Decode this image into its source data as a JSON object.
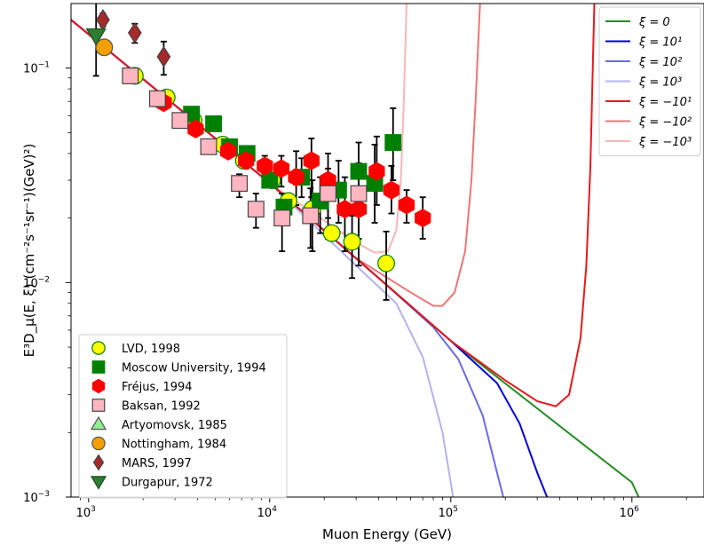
{
  "chart_data": {
    "type": "scatter",
    "xlabel": "Muon Energy (GeV)",
    "ylabel": "E³D_μ(E, ξ) (cm⁻²s⁻¹sr⁻¹)(GeV)²)",
    "xscale": "log",
    "yscale": "log",
    "xlim": [
      800,
      2500000
    ],
    "ylim": [
      0.001,
      0.2
    ],
    "xticks": [
      {
        "value": 1000,
        "base": "10",
        "exp": "3"
      },
      {
        "value": 10000,
        "base": "10",
        "exp": "4"
      },
      {
        "value": 100000,
        "base": "10",
        "exp": "5"
      },
      {
        "value": 1000000,
        "base": "10",
        "exp": "6"
      }
    ],
    "yticks": [
      {
        "value": 0.001,
        "base": "10",
        "exp": "−3"
      },
      {
        "value": 0.01,
        "base": "10",
        "exp": "−2"
      },
      {
        "value": 0.1,
        "base": "10",
        "exp": "−1"
      }
    ],
    "legend_curves": {
      "placement": "top-right",
      "items": [
        {
          "label": "ξ = 0",
          "color": "#228b22"
        },
        {
          "label": "ξ = 10¹",
          "color": "#0000dd"
        },
        {
          "label": "ξ = 10²",
          "color": "#6a6ae8"
        },
        {
          "label": "ξ = 10³",
          "color": "#b3b3f2"
        },
        {
          "label": "ξ = −10¹",
          "color": "#e6191d"
        },
        {
          "label": "ξ = −10²",
          "color": "#ee7575"
        },
        {
          "label": "ξ = −10³",
          "color": "#f7b7b7"
        }
      ]
    },
    "curves": [
      {
        "color": "#f7b7b7",
        "points": [
          [
            800,
            0.168
          ],
          [
            10000,
            0.0291
          ],
          [
            30000,
            0.0154
          ],
          [
            38000,
            0.0138
          ],
          [
            45000,
            0.014
          ],
          [
            50000,
            0.0175
          ],
          [
            53000,
            0.03
          ],
          [
            55000,
            0.07
          ],
          [
            57000,
            0.2
          ]
        ]
      },
      {
        "color": "#ee7575",
        "points": [
          [
            800,
            0.168
          ],
          [
            10000,
            0.0291
          ],
          [
            30000,
            0.013
          ],
          [
            60000,
            0.009
          ],
          [
            80000,
            0.0078
          ],
          [
            90000,
            0.0078
          ],
          [
            105000,
            0.009
          ],
          [
            120000,
            0.014
          ],
          [
            130000,
            0.03
          ],
          [
            137000,
            0.07
          ],
          [
            145000,
            0.2
          ]
        ]
      },
      {
        "color": "#b3b3f2",
        "points": [
          [
            800,
            0.168
          ],
          [
            10000,
            0.0291
          ],
          [
            30000,
            0.012
          ],
          [
            50000,
            0.008
          ],
          [
            70000,
            0.0045
          ],
          [
            90000,
            0.002
          ],
          [
            103000,
            0.001
          ]
        ]
      },
      {
        "color": "#6a6ae8",
        "points": [
          [
            800,
            0.168
          ],
          [
            10000,
            0.0291
          ],
          [
            40000,
            0.0105
          ],
          [
            80000,
            0.0062
          ],
          [
            110000,
            0.0044
          ],
          [
            150000,
            0.0024
          ],
          [
            180000,
            0.0013
          ],
          [
            195000,
            0.001
          ]
        ]
      },
      {
        "color": "#228b22",
        "points": [
          [
            800,
            0.168
          ],
          [
            10000,
            0.0291
          ],
          [
            100000,
            0.00535
          ],
          [
            1000000,
            0.00117
          ],
          [
            1090000,
            0.001
          ]
        ]
      },
      {
        "color": "#0000dd",
        "points": [
          [
            800,
            0.168
          ],
          [
            10000,
            0.0291
          ],
          [
            100000,
            0.00535
          ],
          [
            180000,
            0.0034
          ],
          [
            240000,
            0.0022
          ],
          [
            300000,
            0.0013
          ],
          [
            340000,
            0.001
          ]
        ]
      },
      {
        "color": "#e6191d",
        "points": [
          [
            800,
            0.168
          ],
          [
            10000,
            0.0291
          ],
          [
            100000,
            0.00535
          ],
          [
            200000,
            0.0035
          ],
          [
            300000,
            0.0028
          ],
          [
            380000,
            0.00265
          ],
          [
            450000,
            0.003
          ],
          [
            520000,
            0.0055
          ],
          [
            560000,
            0.012
          ],
          [
            590000,
            0.035
          ],
          [
            620000,
            0.2
          ]
        ]
      }
    ],
    "legend_data": {
      "placement": "lower-left",
      "items": [
        {
          "label": "LVD, 1998",
          "marker": "circle",
          "color": "#ffff00",
          "edge": "#008000"
        },
        {
          "label": "Moscow University, 1994",
          "marker": "square",
          "color": "#008000",
          "edge": "#008000"
        },
        {
          "label": "Fréjus, 1994",
          "marker": "hexagon",
          "color": "#ff0000",
          "edge": "#ff0000"
        },
        {
          "label": "Baksan, 1992",
          "marker": "square",
          "color": "#ffb6c1",
          "edge": "#444444"
        },
        {
          "label": "Artyomovsk, 1985",
          "marker": "triangle-up",
          "color": "#90ee90",
          "edge": "#555555"
        },
        {
          "label": "Nottingham, 1984",
          "marker": "circle",
          "color": "#f4a000",
          "edge": "#555555"
        },
        {
          "label": "MARS, 1997",
          "marker": "diamond",
          "color": "#a52a2a",
          "edge": "#444444"
        },
        {
          "label": "Durgapur, 1972",
          "marker": "triangle-down",
          "color": "#2e7d32",
          "edge": "#1b4d1f"
        }
      ]
    },
    "series": [
      {
        "name": "LVD, 1998",
        "marker": "circle",
        "color": "#ffff00",
        "edge": "#008000",
        "points": [
          [
            1800,
            0.092
          ],
          [
            2700,
            0.073
          ],
          [
            3800,
            0.057
          ],
          [
            5500,
            0.044
          ],
          [
            7200,
            0.037
          ],
          [
            10300,
            0.03
          ],
          [
            12700,
            0.024
          ],
          [
            17200,
            0.022
          ],
          [
            22000,
            0.017
          ],
          [
            28500,
            0.0155
          ],
          [
            44000,
            0.0123
          ]
        ],
        "errors": [
          [
            0,
            0
          ],
          [
            0,
            0
          ],
          [
            0,
            0
          ],
          [
            0,
            0
          ],
          [
            0,
            0
          ],
          [
            0,
            0
          ],
          [
            0,
            0
          ],
          [
            0.008,
            0.008
          ],
          [
            0,
            0
          ],
          [
            0.005,
            0.005
          ],
          [
            0.004,
            0.005
          ]
        ]
      },
      {
        "name": "Moscow University, 1994",
        "marker": "square",
        "color": "#008000",
        "edge": "#008000",
        "points": [
          [
            3700,
            0.061
          ],
          [
            4900,
            0.055
          ],
          [
            6000,
            0.043
          ],
          [
            7500,
            0.04
          ],
          [
            10000,
            0.03
          ],
          [
            12000,
            0.0225
          ],
          [
            15000,
            0.031
          ],
          [
            19000,
            0.024
          ],
          [
            24000,
            0.027
          ],
          [
            31000,
            0.033
          ],
          [
            38000,
            0.029
          ],
          [
            48000,
            0.045
          ]
        ],
        "errors": [
          [
            0,
            0
          ],
          [
            0,
            0
          ],
          [
            0,
            0
          ],
          [
            0.003,
            0.003
          ],
          [
            0.002,
            0.002
          ],
          [
            0.003,
            0.003
          ],
          [
            0.006,
            0.007
          ],
          [
            0.007,
            0.007
          ],
          [
            0.008,
            0.01
          ],
          [
            0.01,
            0.012
          ],
          [
            0.01,
            0.015
          ],
          [
            0.015,
            0.02
          ]
        ]
      },
      {
        "name": "Fréjus, 1994",
        "marker": "hexagon",
        "color": "#ff0000",
        "edge": "#ff0000",
        "points": [
          [
            2600,
            0.069
          ],
          [
            3900,
            0.052
          ],
          [
            5900,
            0.041
          ],
          [
            7400,
            0.037
          ],
          [
            9400,
            0.035
          ],
          [
            11600,
            0.034
          ],
          [
            14000,
            0.031
          ],
          [
            17000,
            0.037
          ],
          [
            21000,
            0.03
          ],
          [
            26000,
            0.022
          ],
          [
            31000,
            0.022
          ],
          [
            39000,
            0.033
          ],
          [
            47000,
            0.027
          ],
          [
            57000,
            0.023
          ],
          [
            70000,
            0.02
          ]
        ],
        "errors": [
          [
            0,
            0
          ],
          [
            0,
            0
          ],
          [
            0,
            0
          ],
          [
            0.003,
            0.003
          ],
          [
            0.004,
            0.004
          ],
          [
            0.006,
            0.005
          ],
          [
            0.008,
            0.01
          ],
          [
            0.012,
            0.01
          ],
          [
            0.01,
            0.01
          ],
          [
            0.008,
            0.009
          ],
          [
            0.01,
            0.01
          ],
          [
            0.01,
            0.015
          ],
          [
            0.006,
            0.008
          ],
          [
            0.004,
            0.004
          ],
          [
            0.004,
            0.005
          ]
        ]
      },
      {
        "name": "Baksan, 1992",
        "marker": "square",
        "color": "#ffb6c1",
        "edge": "#444444",
        "points": [
          [
            1700,
            0.092
          ],
          [
            2400,
            0.072
          ],
          [
            3200,
            0.057
          ],
          [
            4600,
            0.043
          ],
          [
            6800,
            0.029
          ],
          [
            8400,
            0.022
          ],
          [
            11700,
            0.02
          ],
          [
            16800,
            0.0205
          ],
          [
            21000,
            0.026
          ],
          [
            31000,
            0.026
          ]
        ],
        "errors": [
          [
            0,
            0
          ],
          [
            0,
            0
          ],
          [
            0,
            0
          ],
          [
            0.002,
            0.002
          ],
          [
            0.004,
            0.003
          ],
          [
            0.004,
            0.004
          ],
          [
            0.006,
            0.006
          ],
          [
            0.006,
            0.007
          ],
          [
            0.01,
            0.008
          ],
          [
            0.01,
            0.01
          ]
        ]
      },
      {
        "name": "Artyomovsk, 1985",
        "marker": "triangle-up",
        "color": "#90ee90",
        "edge": "#555555",
        "points": [],
        "errors": []
      },
      {
        "name": "Nottingham, 1984",
        "marker": "circle",
        "color": "#f4a000",
        "edge": "#555555",
        "points": [
          [
            1220,
            0.125
          ]
        ],
        "errors": [
          [
            0,
            0
          ]
        ]
      },
      {
        "name": "MARS, 1997",
        "marker": "diamond",
        "color": "#a52a2a",
        "edge": "#444444",
        "points": [
          [
            1200,
            0.168
          ],
          [
            1800,
            0.146
          ],
          [
            2600,
            0.113
          ]
        ],
        "errors": [
          [
            0.012,
            0.012
          ],
          [
            0.015,
            0.015
          ],
          [
            0.02,
            0.02
          ]
        ]
      },
      {
        "name": "Durgapur, 1972",
        "marker": "triangle-down",
        "color": "#2e7d32",
        "edge": "#1b4d1f",
        "points": [
          [
            1100,
            0.142
          ]
        ],
        "errors": [
          [
            0.05,
            0.06
          ]
        ]
      }
    ]
  }
}
